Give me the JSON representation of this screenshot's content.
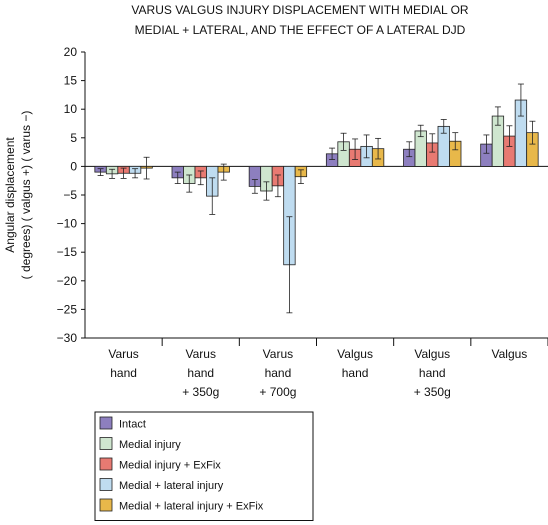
{
  "chart_data": {
    "type": "bar",
    "title": [
      "VARUS VALGUS INJURY DISPLACEMENT WITH MEDIAL OR",
      "MEDIAL + LATERAL, AND THE EFFECT OF A LATERAL DJD"
    ],
    "ylabel": [
      "Angular displacement",
      "( degrees) ( valgus +) ( varus −)"
    ],
    "xlabel": "",
    "ylim": [
      -30,
      20
    ],
    "yticks": [
      "20",
      "15",
      "10",
      "5",
      "0",
      "−5",
      "−10",
      "−15",
      "−20",
      "−25",
      "−30"
    ],
    "ytick_values": [
      20,
      15,
      10,
      5,
      0,
      -5,
      -10,
      -15,
      -20,
      -25,
      -30
    ],
    "categories": [
      [
        "Varus",
        "hand"
      ],
      [
        "Varus",
        "hand",
        "+ 350g"
      ],
      [
        "Varus",
        "hand",
        "+ 700g"
      ],
      [
        "Valgus",
        "hand"
      ],
      [
        "Valgus",
        "hand",
        "+ 350g"
      ],
      [
        "Valgus"
      ]
    ],
    "series": [
      {
        "name": "Intact",
        "color": "#8d7fbf",
        "values": [
          -1.0,
          -2.0,
          -3.5,
          2.2,
          3.0,
          3.9
        ],
        "errors": [
          0.6,
          1.0,
          1.2,
          1.0,
          1.3,
          1.6
        ]
      },
      {
        "name": "Medial injury",
        "color": "#cfe6cf",
        "values": [
          -1.3,
          -3.0,
          -4.3,
          4.3,
          6.2,
          8.8
        ],
        "errors": [
          0.8,
          1.5,
          1.6,
          1.5,
          1.0,
          1.6
        ]
      },
      {
        "name": "Medial injury + ExFix",
        "color": "#e87a72",
        "values": [
          -1.2,
          -2.0,
          -3.4,
          3.0,
          4.1,
          5.3
        ],
        "errors": [
          0.9,
          1.2,
          1.9,
          1.8,
          1.6,
          1.8
        ]
      },
      {
        "name": "Medial + lateral injury",
        "color": "#bfdcf0",
        "values": [
          -1.2,
          -5.2,
          -17.2,
          3.5,
          7.0,
          11.6
        ],
        "errors": [
          0.8,
          3.2,
          8.4,
          2.0,
          1.2,
          2.8
        ]
      },
      {
        "name": "Medial + lateral injury + ExFix",
        "color": "#e8b84a",
        "values": [
          -0.3,
          -1.0,
          -1.8,
          3.1,
          4.4,
          5.9
        ],
        "errors": [
          1.9,
          1.4,
          1.2,
          1.8,
          1.5,
          2.0
        ]
      }
    ],
    "legend_position": "bottom-left",
    "grid": false
  }
}
